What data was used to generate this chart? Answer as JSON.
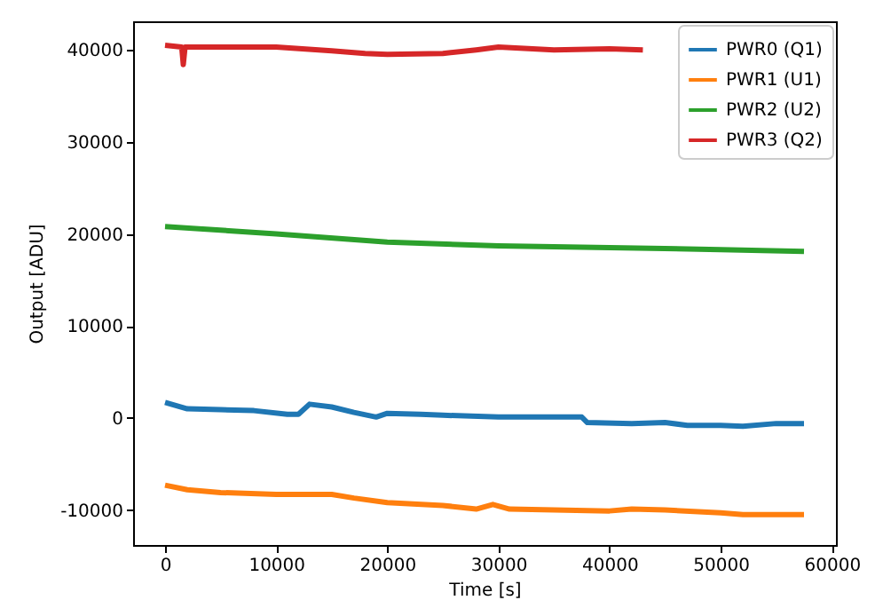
{
  "chart_data": {
    "type": "line",
    "xlabel": "Time [s]",
    "ylabel": "Output [ADU]",
    "xlim": [
      -2875,
      60375
    ],
    "ylim": [
      -13800,
      43100
    ],
    "xticks": [
      0,
      10000,
      20000,
      30000,
      40000,
      50000,
      60000
    ],
    "yticks": [
      -10000,
      0,
      10000,
      20000,
      30000,
      40000
    ],
    "grid": false,
    "legend": "top right",
    "line_style": "solid",
    "marker": "none",
    "series": [
      {
        "name": "PWR0 (Q1)",
        "color": "#1f77b4",
        "x": [
          0,
          2000,
          5000,
          8000,
          11000,
          12000,
          13000,
          15000,
          17000,
          19000,
          20000,
          23000,
          25000,
          30000,
          35000,
          37500,
          38000,
          42000,
          45000,
          47000,
          50000,
          52000,
          55000,
          57500
        ],
        "values": [
          1700,
          1000,
          900,
          800,
          400,
          400,
          1500,
          1200,
          600,
          100,
          500,
          400,
          300,
          100,
          100,
          100,
          -500,
          -600,
          -500,
          -800,
          -800,
          -900,
          -600,
          -600
        ]
      },
      {
        "name": "PWR1 (U1)",
        "color": "#ff7f0e",
        "x": [
          0,
          2000,
          5000,
          10000,
          15000,
          17000,
          20000,
          25000,
          28000,
          29500,
          31000,
          35000,
          40000,
          42000,
          45000,
          50000,
          52000,
          57500
        ],
        "values": [
          -7300,
          -7800,
          -8100,
          -8300,
          -8300,
          -8700,
          -9200,
          -9500,
          -9900,
          -9400,
          -9900,
          -10000,
          -10100,
          -9900,
          -10000,
          -10300,
          -10500,
          -10500
        ]
      },
      {
        "name": "PWR2 (U2)",
        "color": "#2ca02c",
        "x": [
          0,
          10000,
          20000,
          30000,
          40000,
          50000,
          57500
        ],
        "values": [
          20800,
          20000,
          19100,
          18700,
          18500,
          18300,
          18100
        ]
      },
      {
        "name": "PWR3 (Q2)",
        "color": "#d62728",
        "x": [
          0,
          1500,
          1640,
          1800,
          2000,
          10000,
          15000,
          18000,
          20000,
          25000,
          28000,
          30000,
          35000,
          40000,
          43000
        ],
        "values": [
          40500,
          40300,
          38400,
          40300,
          40300,
          40300,
          39900,
          39600,
          39500,
          39600,
          40000,
          40300,
          40000,
          40100,
          40000
        ]
      }
    ]
  }
}
